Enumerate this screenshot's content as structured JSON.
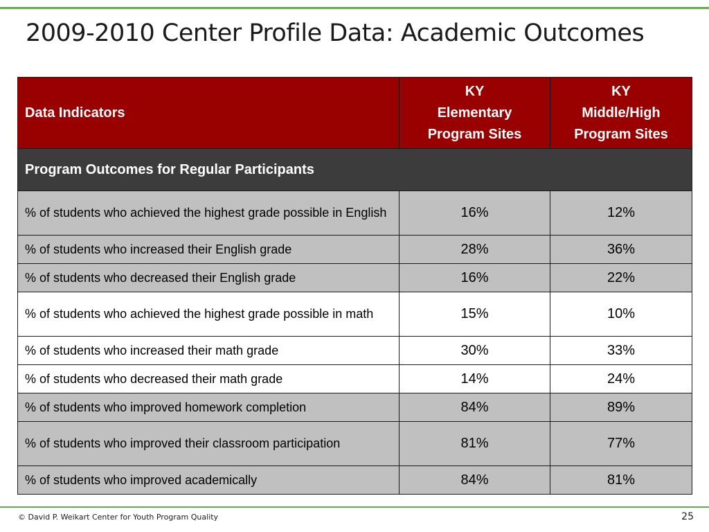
{
  "slide": {
    "title": "2009-2010 Center Profile Data: Academic Outcomes",
    "footer_text": "© David P. Weikart Center for Youth Program Quality",
    "page_number": "25"
  },
  "colors": {
    "header_bg": "#990000",
    "section_bg": "#3c3c3c",
    "row_gray": "#c0c0c0",
    "row_white": "#ffffff",
    "rule_green": "#6aa84f"
  },
  "table": {
    "headers": {
      "indicator": "Data Indicators",
      "elementary_line1": "KY",
      "elementary_line2": "Elementary",
      "elementary_line3": "Program Sites",
      "middle_line1": "KY",
      "middle_line2": "Middle/High",
      "middle_line3": "Program Sites"
    },
    "section_label": "Program Outcomes for Regular Participants",
    "rows": [
      {
        "indicator": "% of students who achieved the highest grade possible in English",
        "elementary": "16%",
        "middle_high": "12%"
      },
      {
        "indicator": "% of students who increased their English grade",
        "elementary": "28%",
        "middle_high": "36%"
      },
      {
        "indicator": "% of students who decreased their English grade",
        "elementary": "16%",
        "middle_high": "22%"
      },
      {
        "indicator": "% of students who achieved the highest grade possible in math",
        "elementary": "15%",
        "middle_high": "10%"
      },
      {
        "indicator": "% of students who increased their math grade",
        "elementary": "30%",
        "middle_high": "33%"
      },
      {
        "indicator": "% of students who decreased their math grade",
        "elementary": "14%",
        "middle_high": "24%"
      },
      {
        "indicator": "% of students who improved homework completion",
        "elementary": "84%",
        "middle_high": "89%"
      },
      {
        "indicator": "% of students who improved their classroom participation",
        "elementary": "81%",
        "middle_high": "77%"
      },
      {
        "indicator": "% of students who improved academically",
        "elementary": "84%",
        "middle_high": "81%"
      }
    ]
  }
}
